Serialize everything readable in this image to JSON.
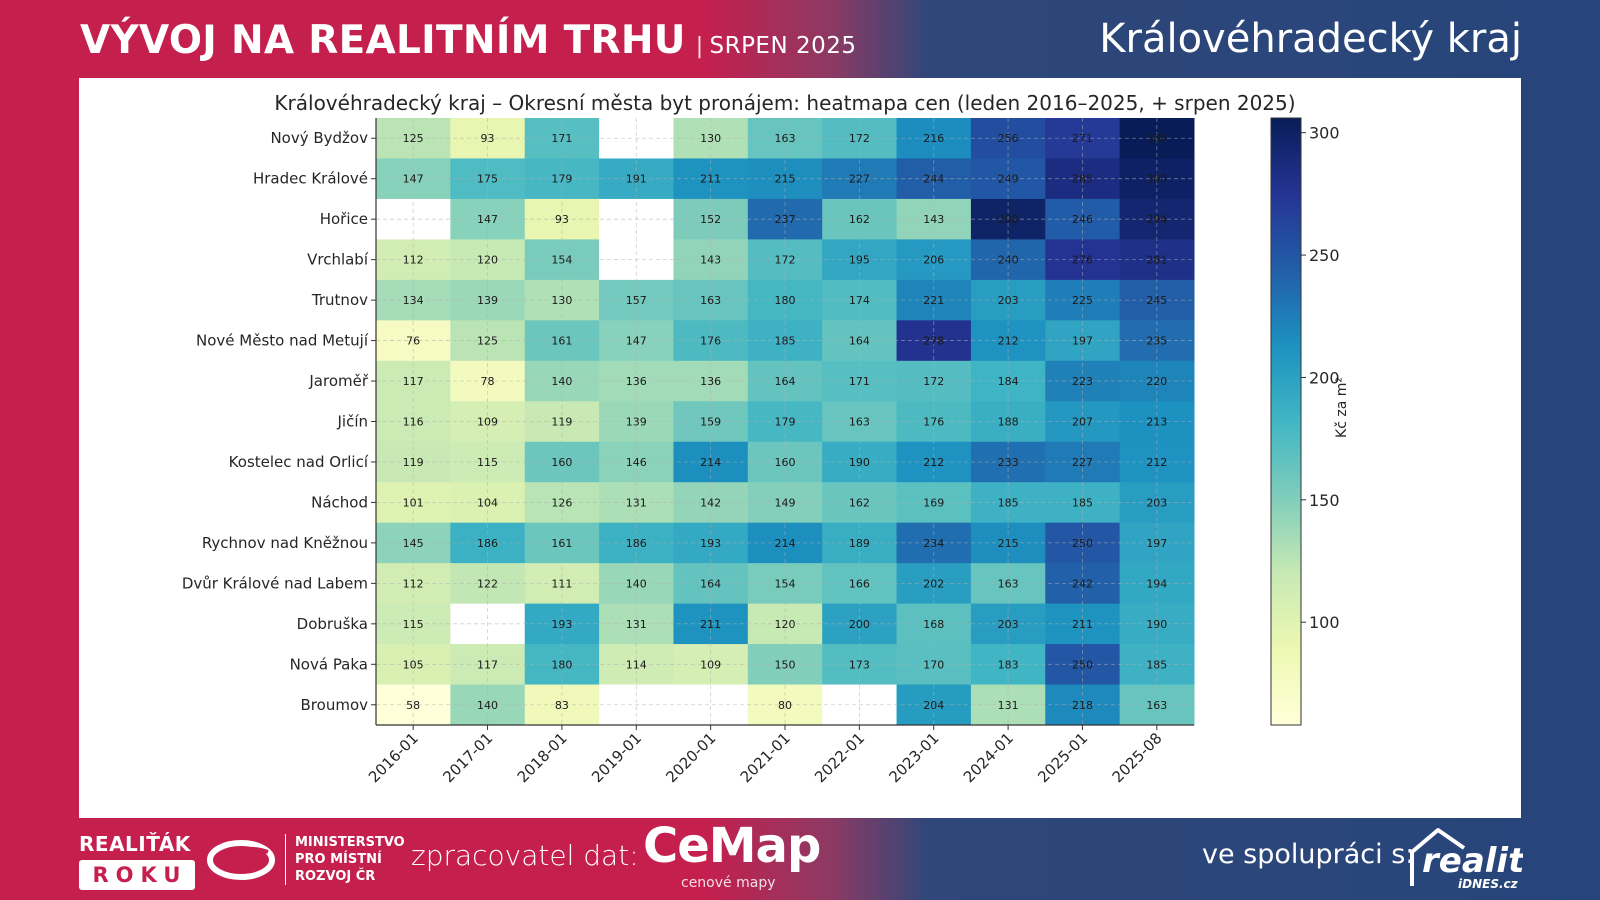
{
  "header": {
    "title": "VÝVOJ NA REALITNÍM TRHU",
    "separator": "|",
    "period": "SRPEN 2025",
    "region": "Královéhradecký kraj"
  },
  "footer": {
    "realitak_top": "REALIŤÁK",
    "realitak_box": "ROKU",
    "ministry_lines": [
      "MINISTERSTVO",
      "PRO MÍSTNÍ",
      "ROZVOJ ČR"
    ],
    "processor_label": "zpracovatel dat:",
    "cemap_word": "CeMap",
    "cemap_tagline": "cenové mapy",
    "partner_label": "ve spolupráci s:",
    "reality_word": "reality",
    "reality_sub": "iDNES.cz"
  },
  "chart_data": {
    "type": "heatmap",
    "title": "Královéhradecký kraj – Okresní města byt pronájem: heatmapa cen (leden 2016–2025, + srpen 2025)",
    "xlabel": "",
    "ylabel": "",
    "colorbar_label": "Kč za m²",
    "colormap": "YlGnBu",
    "vmin": 58,
    "vmax": 306,
    "colorbar_ticks": [
      100,
      150,
      200,
      250,
      300
    ],
    "grid": true,
    "x": [
      "2016-01",
      "2017-01",
      "2018-01",
      "2019-01",
      "2020-01",
      "2021-01",
      "2022-01",
      "2023-01",
      "2024-01",
      "2025-01",
      "2025-08"
    ],
    "y": [
      "Nový Bydžov",
      "Hradec Králové",
      "Hořice",
      "Vrchlabí",
      "Trutnov",
      "Nové Město nad Metují",
      "Jaroměř",
      "Jičín",
      "Kostelec nad Orlicí",
      "Náchod",
      "Rychnov nad Kněžnou",
      "Dvůr Králové nad Labem",
      "Dobruška",
      "Nová Paka",
      "Broumov"
    ],
    "values": [
      [
        125,
        93,
        171,
        null,
        130,
        163,
        172,
        216,
        256,
        271,
        306
      ],
      [
        147,
        175,
        179,
        191,
        211,
        215,
        227,
        244,
        249,
        285,
        300
      ],
      [
        null,
        147,
        93,
        null,
        152,
        237,
        162,
        143,
        298,
        246,
        294
      ],
      [
        112,
        120,
        154,
        null,
        143,
        172,
        195,
        206,
        240,
        276,
        281
      ],
      [
        134,
        139,
        130,
        157,
        163,
        180,
        174,
        221,
        203,
        225,
        245
      ],
      [
        76,
        125,
        161,
        147,
        176,
        185,
        164,
        278,
        212,
        197,
        235
      ],
      [
        117,
        78,
        140,
        136,
        136,
        164,
        171,
        172,
        184,
        223,
        220
      ],
      [
        116,
        109,
        119,
        139,
        159,
        179,
        163,
        176,
        188,
        207,
        213
      ],
      [
        119,
        115,
        160,
        146,
        214,
        160,
        190,
        212,
        233,
        227,
        212
      ],
      [
        101,
        104,
        126,
        131,
        142,
        149,
        162,
        169,
        185,
        185,
        203
      ],
      [
        145,
        186,
        161,
        186,
        193,
        214,
        189,
        234,
        215,
        250,
        197
      ],
      [
        112,
        122,
        111,
        140,
        164,
        154,
        166,
        202,
        163,
        242,
        194
      ],
      [
        115,
        null,
        193,
        131,
        211,
        120,
        200,
        168,
        203,
        211,
        190
      ],
      [
        105,
        117,
        180,
        114,
        109,
        150,
        173,
        170,
        183,
        250,
        185
      ],
      [
        58,
        140,
        83,
        null,
        null,
        80,
        null,
        204,
        131,
        218,
        163
      ]
    ]
  }
}
